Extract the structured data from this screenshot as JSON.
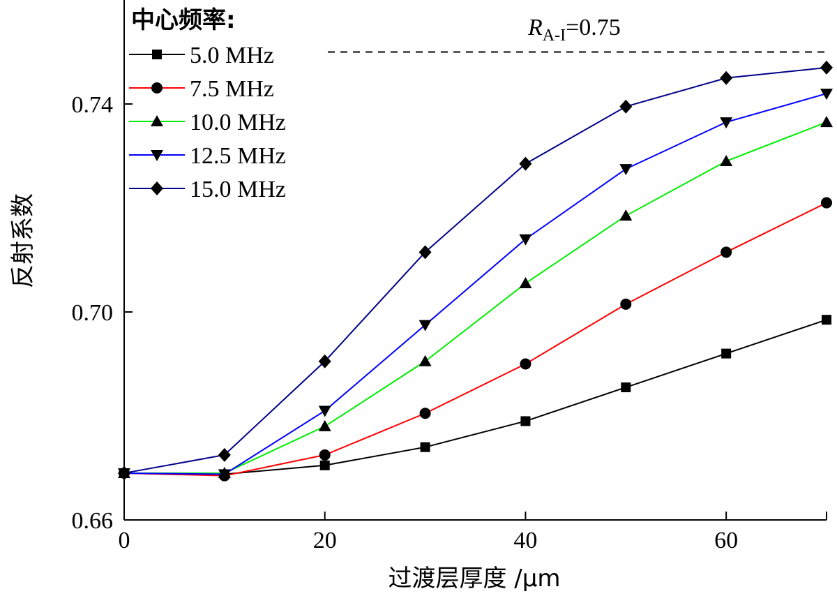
{
  "chart_data": {
    "type": "line",
    "xlabel": "过渡层厚度 /μm",
    "ylabel": "反射系数",
    "xlim": [
      0,
      70
    ],
    "ylim": [
      0.66,
      0.76
    ],
    "xticks": [
      "0",
      "20",
      "40",
      "60"
    ],
    "yticks": [
      "0.66",
      "0.70",
      "0.74"
    ],
    "legend_title": "中心频率:",
    "legend_position": "top-left",
    "x": [
      0,
      10,
      20,
      30,
      40,
      50,
      60,
      70
    ],
    "series": [
      {
        "name": "5.0 MHz",
        "color": "#000000",
        "marker": "square",
        "values": [
          0.669,
          0.6688,
          0.6705,
          0.674,
          0.679,
          0.6855,
          0.692,
          0.6985
        ]
      },
      {
        "name": "7.5 MHz",
        "color": "#ff0000",
        "marker": "circle",
        "values": [
          0.669,
          0.6685,
          0.6725,
          0.6805,
          0.69,
          0.7015,
          0.7115,
          0.721
        ]
      },
      {
        "name": "10.0 MHz",
        "color": "#00ee00",
        "marker": "triangle-up",
        "values": [
          0.669,
          0.669,
          0.678,
          0.6905,
          0.7055,
          0.7185,
          0.729,
          0.7365
        ]
      },
      {
        "name": "12.5 MHz",
        "color": "#0000ff",
        "marker": "triangle-down",
        "values": [
          0.669,
          0.6688,
          0.681,
          0.6975,
          0.714,
          0.7275,
          0.7365,
          0.742
        ]
      },
      {
        "name": "15.0 MHz",
        "color": "#000088",
        "marker": "diamond",
        "values": [
          0.669,
          0.6725,
          0.6905,
          0.7115,
          0.7285,
          0.7395,
          0.745,
          0.747
        ]
      }
    ],
    "reference_line": {
      "value": 0.75,
      "label_main": "R",
      "label_sub": "A-I",
      "label_value": "=0.75"
    }
  }
}
